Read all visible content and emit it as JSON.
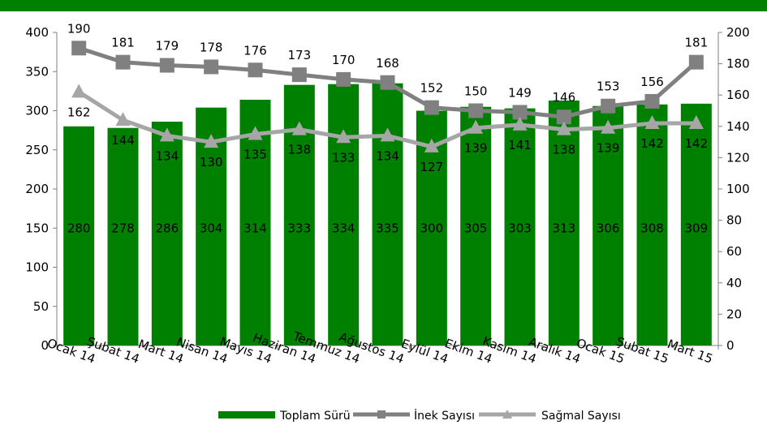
{
  "colors": {
    "band": "#008000",
    "bars": "#008000",
    "inek": "#808080",
    "sagmal": "#a6a6a6",
    "axis": "#808080"
  },
  "chart_data": {
    "type": "bar",
    "categories": [
      "Ocak 14",
      "Şubat 14",
      "Mart 14",
      "Nisan 14",
      "Mayıs 14",
      "Haziran 14",
      "Temmuz 14",
      "Ağustos 14",
      "Eylül 14",
      "Ekim 14",
      "Kasım 14",
      "Aralık 14",
      "Ocak 15",
      "Şubat 15",
      "Mart 15"
    ],
    "series": [
      {
        "name": "Toplam Sürü",
        "type": "bar",
        "axis": "left",
        "marker": "none",
        "values": [
          280,
          278,
          286,
          304,
          314,
          333,
          334,
          335,
          300,
          305,
          303,
          313,
          306,
          308,
          309
        ]
      },
      {
        "name": "İnek Sayısı",
        "type": "line",
        "axis": "right",
        "marker": "square",
        "values": [
          190,
          181,
          179,
          178,
          176,
          173,
          170,
          168,
          152,
          150,
          149,
          146,
          153,
          156,
          181
        ]
      },
      {
        "name": "Sağmal Sayısı",
        "type": "line",
        "axis": "right",
        "marker": "triangle",
        "values": [
          162,
          144,
          134,
          130,
          135,
          138,
          133,
          134,
          127,
          139,
          141,
          138,
          139,
          142,
          142
        ]
      }
    ],
    "inek_label_indices": [
      0,
      1,
      2,
      3,
      4,
      5,
      6,
      7,
      8,
      9,
      10,
      11,
      12,
      13,
      14
    ],
    "y_left": {
      "min": 0,
      "max": 400,
      "step": 50,
      "ticks": [
        "0",
        "50",
        "100",
        "150",
        "200",
        "250",
        "300",
        "350",
        "400"
      ]
    },
    "y_right": {
      "min": 0,
      "max": 200,
      "step": 20,
      "ticks": [
        "0",
        "20",
        "40",
        "60",
        "80",
        "100",
        "120",
        "140",
        "160",
        "180",
        "200"
      ]
    },
    "legend_position": "bottom",
    "grid": false
  }
}
